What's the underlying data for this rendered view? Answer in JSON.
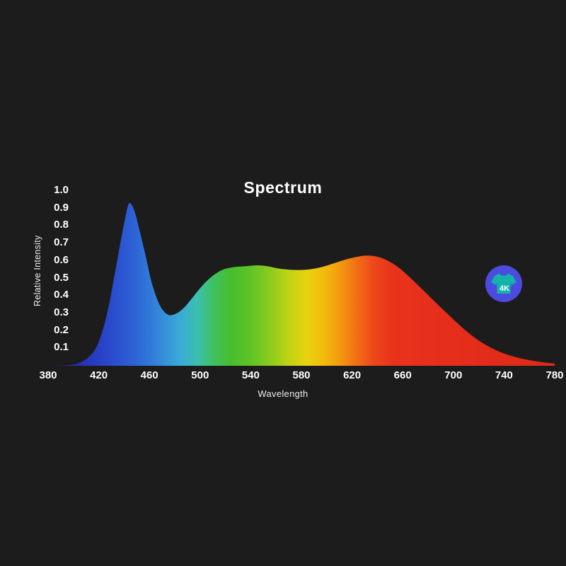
{
  "chart_data": {
    "type": "area",
    "title": "Spectrum",
    "xlabel": "Wavelength",
    "ylabel": "Relative Intensity",
    "xlim": [
      380,
      780
    ],
    "ylim": [
      0,
      1.0
    ],
    "grid": false,
    "legend": "none",
    "x_ticks": [
      380,
      420,
      460,
      500,
      540,
      580,
      620,
      660,
      700,
      740,
      780
    ],
    "y_ticks": [
      0.1,
      0.2,
      0.3,
      0.4,
      0.5,
      0.6,
      0.7,
      0.8,
      0.9,
      1.0
    ],
    "points": [
      [
        380,
        0
      ],
      [
        396,
        0.004
      ],
      [
        404,
        0.015
      ],
      [
        412,
        0.05
      ],
      [
        419,
        0.12
      ],
      [
        426,
        0.28
      ],
      [
        432,
        0.5
      ],
      [
        437,
        0.7
      ],
      [
        441,
        0.85
      ],
      [
        444,
        0.93
      ],
      [
        448,
        0.89
      ],
      [
        452,
        0.78
      ],
      [
        457,
        0.63
      ],
      [
        462,
        0.47
      ],
      [
        468,
        0.35
      ],
      [
        474,
        0.295
      ],
      [
        480,
        0.295
      ],
      [
        487,
        0.33
      ],
      [
        494,
        0.39
      ],
      [
        502,
        0.46
      ],
      [
        510,
        0.515
      ],
      [
        518,
        0.55
      ],
      [
        527,
        0.565
      ],
      [
        536,
        0.57
      ],
      [
        545,
        0.575
      ],
      [
        553,
        0.57
      ],
      [
        561,
        0.558
      ],
      [
        570,
        0.55
      ],
      [
        579,
        0.548
      ],
      [
        588,
        0.553
      ],
      [
        597,
        0.567
      ],
      [
        606,
        0.587
      ],
      [
        615,
        0.608
      ],
      [
        623,
        0.622
      ],
      [
        630,
        0.63
      ],
      [
        637,
        0.628
      ],
      [
        644,
        0.615
      ],
      [
        651,
        0.59
      ],
      [
        658,
        0.555
      ],
      [
        665,
        0.51
      ],
      [
        672,
        0.462
      ],
      [
        680,
        0.405
      ],
      [
        688,
        0.348
      ],
      [
        695,
        0.3
      ],
      [
        702,
        0.252
      ],
      [
        710,
        0.2
      ],
      [
        718,
        0.155
      ],
      [
        726,
        0.118
      ],
      [
        734,
        0.088
      ],
      [
        742,
        0.065
      ],
      [
        750,
        0.048
      ],
      [
        758,
        0.035
      ],
      [
        766,
        0.025
      ],
      [
        773,
        0.018
      ],
      [
        780,
        0.013
      ]
    ],
    "gradient_stops": [
      [
        380,
        "#2a1a92"
      ],
      [
        406,
        "#2531b6"
      ],
      [
        428,
        "#2a48cc"
      ],
      [
        448,
        "#2e62d6"
      ],
      [
        466,
        "#3384da"
      ],
      [
        484,
        "#3aaad8"
      ],
      [
        498,
        "#3bbfae"
      ],
      [
        510,
        "#3ec162"
      ],
      [
        524,
        "#47bd2e"
      ],
      [
        540,
        "#5ec426"
      ],
      [
        556,
        "#8ecb1d"
      ],
      [
        570,
        "#c0d414"
      ],
      [
        584,
        "#e8d20e"
      ],
      [
        598,
        "#f2bb0c"
      ],
      [
        612,
        "#f2950f"
      ],
      [
        625,
        "#f06b15"
      ],
      [
        637,
        "#ed471a"
      ],
      [
        652,
        "#e9331c"
      ],
      [
        700,
        "#e52e1b"
      ],
      [
        780,
        "#de2a19"
      ]
    ],
    "background_color": "#1c1c1c",
    "text_color": "#f5f5f5"
  },
  "badge": {
    "label": "4K",
    "circle_color": "#4b4be0",
    "shirt_color": "#14b3a9",
    "label_color": "#ffffff"
  }
}
